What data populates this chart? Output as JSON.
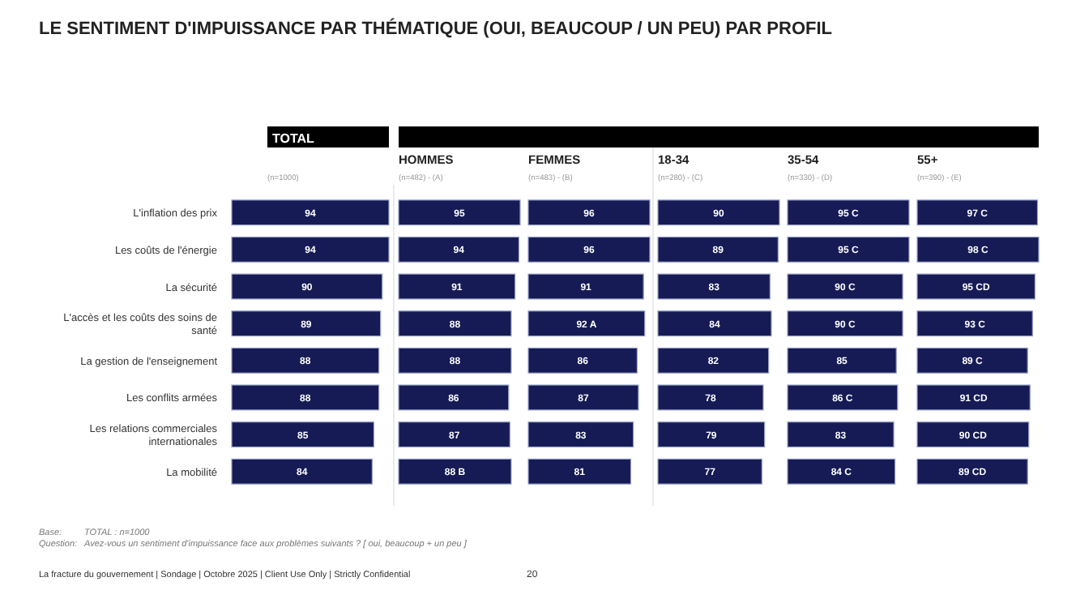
{
  "chart_data": [
    {
      "type": "other",
      "title": "LE SENTIMENT D'IMPUISSANCE PAR THÉMATIQUE (OUI, BEAUCOUP / UN PEU) PAR PROFIL",
      "annotations": [
        "Base:",
        "TOTAL : n=1000",
        "Question:",
        "Avez-vous un sentiment d'impuissance face aux problèmes suivants ? [ oui, beaucoup + un peu ]",
        "La fracture du gouvernement | Sondage | Octobre 2025 | Client Use Only | Strictly Confidential",
        "20"
      ]
    },
    {
      "type": "bar",
      "orientation": "horizontal",
      "title": "TOTAL",
      "subtitle": "(n=1000)",
      "categories": [
        "L'inflation des prix",
        "Les coûts de l'énergie",
        "La sécurité",
        "L'accès et les coûts des soins de santé",
        "La gestion de l'enseignement",
        "Les conflits armées",
        "Les relations commerciales internationales",
        "La mobilité"
      ],
      "tick_labels": "y",
      "color": "#161b55",
      "values": [
        94,
        94,
        90,
        89,
        88,
        88,
        85,
        84
      ],
      "data_labels": true
    },
    {
      "type": "bar",
      "orientation": "horizontal",
      "title": "HOMMES",
      "subtitle": "(n=482) - (A)",
      "categories": [
        null,
        null,
        null,
        null,
        null,
        null,
        null,
        null
      ],
      "tick_labels": false,
      "color": "#161b55",
      "values": [
        95,
        94,
        91,
        88,
        88,
        86,
        87,
        88
      ],
      "value_labels": [
        "95",
        "94",
        "91",
        "88",
        "88",
        "86",
        "87",
        "88 B"
      ]
    },
    {
      "type": "bar",
      "orientation": "horizontal",
      "title": "FEMMES",
      "subtitle": "(n=483) - (B)",
      "categories": [
        null,
        null,
        null,
        null,
        null,
        null,
        null,
        null
      ],
      "tick_labels": false,
      "color": "#161b55",
      "values": [
        96,
        96,
        91,
        92,
        86,
        87,
        83,
        81
      ],
      "value_labels": [
        "96",
        "96",
        "91",
        "92 A",
        "86",
        "87",
        "83",
        "81"
      ]
    },
    {
      "type": "bar",
      "orientation": "horizontal",
      "title": "18-34",
      "subtitle": "(n=280) - (C)",
      "categories": [
        null,
        null,
        null,
        null,
        null,
        null,
        null,
        null
      ],
      "tick_labels": false,
      "color": "#161b55",
      "values": [
        90,
        89,
        83,
        84,
        82,
        78,
        79,
        77
      ],
      "data_labels": true
    },
    {
      "type": "bar",
      "orientation": "horizontal",
      "title": "35-54",
      "subtitle": "(n=330) - (D)",
      "categories": [
        null,
        null,
        null,
        null,
        null,
        null,
        null,
        null
      ],
      "tick_labels": false,
      "color": "#161b55",
      "values": [
        95,
        95,
        90,
        90,
        85,
        86,
        83,
        84
      ],
      "value_labels": [
        "95 C",
        "95 C",
        "90 C",
        "90 C",
        "85",
        "86 C",
        "83",
        "84 C"
      ]
    },
    {
      "type": "bar",
      "orientation": "horizontal",
      "title": "55+",
      "subtitle": "(n=390) - (E)",
      "categories": [
        null,
        null,
        null,
        null,
        null,
        null,
        null,
        null
      ],
      "tick_labels": false,
      "color": "#161b55",
      "values": [
        97,
        98,
        95,
        93,
        89,
        91,
        90,
        89
      ],
      "value_labels": [
        "97 C",
        "98 C",
        "95 CD",
        "93 C",
        "89 C",
        "91 CD",
        "90 CD",
        "89 CD"
      ]
    }
  ]
}
